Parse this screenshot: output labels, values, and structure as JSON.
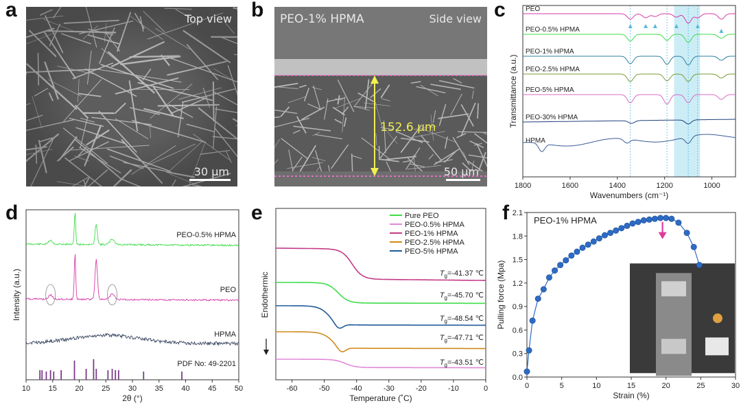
{
  "panels": {
    "a": {
      "letter": "a",
      "view": "Top view",
      "scale": "30 µm"
    },
    "b": {
      "letter": "b",
      "sample": "PEO-1% HPMA",
      "view": "Side view",
      "thickness": "152.6 µm",
      "scale": "50 µm"
    },
    "c": {
      "letter": "c"
    },
    "d": {
      "letter": "d"
    },
    "e": {
      "letter": "e"
    },
    "f": {
      "letter": "f"
    }
  },
  "chart_data": [
    {
      "panel": "c",
      "type": "line",
      "xlabel": "Wavenumbers (cm⁻¹)",
      "ylabel": "Transmittance (a.u.)",
      "xlim": [
        1800,
        900
      ],
      "xticks": [
        1800,
        1600,
        1400,
        1200,
        1000
      ],
      "series": [
        {
          "name": "PEO",
          "color": "#d63aa8"
        },
        {
          "name": "PEO-0.5% HPMA",
          "color": "#3ddc48"
        },
        {
          "name": "PEO-1% HPMA",
          "color": "#2b7fa0"
        },
        {
          "name": "PEO-2.5% HPMA",
          "color": "#7a9a30"
        },
        {
          "name": "PEO-5% HPMA",
          "color": "#d86ac8"
        },
        {
          "name": "PEO-30% HPMA",
          "color": "#1f3f7a"
        },
        {
          "name": "HPMA",
          "color": "#3a5a98"
        }
      ],
      "reference_lines_cm": [
        1345,
        1190,
        1100,
        1060
      ],
      "highlight_band_cm": [
        1160,
        1050
      ]
    },
    {
      "panel": "d",
      "type": "line",
      "xlabel": "2θ (°)",
      "ylabel": "Intensity (a.u.)",
      "xlim": [
        10,
        50
      ],
      "xticks": [
        10,
        15,
        20,
        25,
        30,
        35,
        40,
        45,
        50
      ],
      "series": [
        {
          "name": "PEO-0.5% HPMA",
          "color": "#3ddc48",
          "peaks_2theta": [
            19.2,
            23.2
          ]
        },
        {
          "name": "PEO",
          "color": "#d63aa8",
          "peaks_2theta": [
            19.2,
            23.3
          ]
        },
        {
          "name": "HPMA",
          "color": "#3a4660"
        }
      ],
      "reference": {
        "name": "PDF No: 49-2201",
        "color": "#7a3a8a",
        "lines_2theta": [
          12.6,
          13.0,
          13.8,
          14.6,
          15.2,
          16.6,
          19.1,
          21.3,
          22.7,
          23.2,
          25.4,
          26.2,
          26.8,
          27.4,
          32.1,
          39.3
        ]
      }
    },
    {
      "panel": "e",
      "type": "line",
      "xlabel": "Temperature (˚C)",
      "ylabel": "Endothermic",
      "xlim": [
        -65,
        0
      ],
      "xticks": [
        -60,
        -50,
        -40,
        -30,
        -20,
        -10,
        0
      ],
      "series": [
        {
          "name": "Pure PEO",
          "color": "#3ddc48",
          "tg_label": "-45.70 ℃",
          "tg": -45.7
        },
        {
          "name": "PEO-0.5% HPMA",
          "color": "#e089d8",
          "tg_label": "-43.51 ℃",
          "tg": -43.51
        },
        {
          "name": "PEO-1% HPMA",
          "color": "#c33a86",
          "tg_label": "-41.37 ℃",
          "tg": -41.37
        },
        {
          "name": "PEO-2.5% HPMA",
          "color": "#d08a1c",
          "tg_label": "-47.71 ℃",
          "tg": -47.71
        },
        {
          "name": "PEO-5% HPMA",
          "color": "#1f5a9a",
          "tg_label": "-48.54 ℃",
          "tg": -48.54
        }
      ]
    },
    {
      "panel": "f",
      "type": "scatter",
      "title": "PEO-1% HPMA",
      "xlabel": "Strain (%)",
      "ylabel": "Pulling force (Mpa)",
      "xlim": [
        0,
        30
      ],
      "ylim": [
        0,
        2.1
      ],
      "xticks": [
        0,
        5,
        10,
        15,
        20,
        25,
        30
      ],
      "yticks": [
        "0.0",
        "0.3",
        "0.6",
        "0.9",
        "1.2",
        "1.5",
        "1.8",
        "2.1"
      ],
      "x": [
        0,
        0.3,
        0.8,
        1.6,
        2.4,
        3.2,
        4.0,
        4.8,
        5.6,
        6.4,
        7.2,
        8.0,
        8.8,
        9.6,
        10.4,
        11.2,
        12.0,
        12.8,
        13.6,
        14.4,
        15.2,
        16.0,
        16.8,
        17.6,
        18.4,
        19.2,
        20.0,
        20.8,
        21.8,
        23.0,
        24.0,
        24.8
      ],
      "y": [
        0.07,
        0.34,
        0.72,
        1.0,
        1.12,
        1.27,
        1.36,
        1.43,
        1.49,
        1.55,
        1.6,
        1.65,
        1.69,
        1.73,
        1.77,
        1.81,
        1.84,
        1.87,
        1.9,
        1.93,
        1.96,
        1.98,
        2.0,
        2.01,
        2.02,
        2.03,
        2.03,
        2.02,
        1.97,
        1.84,
        1.66,
        1.43
      ],
      "color": "#2d6bc4",
      "marker_arrow_x": 19.5
    }
  ]
}
